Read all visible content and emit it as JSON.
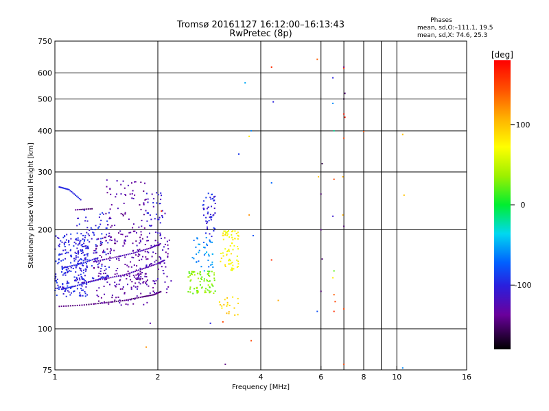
{
  "chart_data": {
    "type": "scatter",
    "title": "Tromsø 20161127 16:12:00–16:13:43",
    "subtitle": "RwPretec (8p)",
    "xlabel": "Frequency [MHz]",
    "ylabel": "Stationary phase Virtual Height [km]",
    "x_scale": "log",
    "y_scale": "log",
    "xlim": [
      1,
      16
    ],
    "ylim": [
      75,
      750
    ],
    "x_ticks": [
      1,
      2,
      4,
      6,
      8,
      10,
      16
    ],
    "y_ticks": [
      75,
      100,
      200,
      300,
      400,
      500,
      600,
      750
    ],
    "x_grid": [
      2,
      4,
      6,
      7,
      8,
      9,
      10
    ],
    "y_grid": [
      100,
      200,
      300,
      400,
      500,
      600
    ],
    "grid": true,
    "phase_stats": {
      "title": "Phases",
      "line_o": "mean, sd,O:–111.1, 19.5",
      "line_x": "mean, sd,X: 74.6, 25.3"
    },
    "colorbar": {
      "label": "[deg]",
      "range": [
        -180,
        180
      ],
      "ticks": [
        100,
        0,
        -100
      ],
      "colormap": "rainbow",
      "placement": "right"
    },
    "clusters": [
      {
        "x": [
          1.0,
          1.25
        ],
        "y": [
          125,
          195
        ],
        "phase": -100,
        "count": 220
      },
      {
        "x": [
          1.15,
          1.45
        ],
        "y": [
          140,
          230
        ],
        "phase": -100,
        "count": 100
      },
      {
        "x": [
          1.3,
          1.9
        ],
        "y": [
          118,
          195
        ],
        "phase": -130,
        "count": 200
      },
      {
        "x": [
          1.4,
          1.85
        ],
        "y": [
          195,
          285
        ],
        "phase": -130,
        "count": 70
      },
      {
        "x": [
          1.7,
          2.2
        ],
        "y": [
          128,
          190
        ],
        "phase": -125,
        "count": 80
      },
      {
        "x": [
          1.85,
          2.1
        ],
        "y": [
          190,
          260
        ],
        "phase": -110,
        "count": 40
      },
      {
        "x": [
          2.45,
          2.95
        ],
        "y": [
          128,
          150
        ],
        "phase": 30,
        "count": 80
      },
      {
        "x": [
          2.5,
          2.9
        ],
        "y": [
          150,
          190
        ],
        "phase": -60,
        "count": 40
      },
      {
        "x": [
          2.7,
          2.95
        ],
        "y": [
          190,
          260
        ],
        "phase": -100,
        "count": 50
      },
      {
        "x": [
          3.05,
          3.45
        ],
        "y": [
          150,
          200
        ],
        "phase": 75,
        "count": 70
      },
      {
        "x": [
          3.0,
          3.5
        ],
        "y": [
          110,
          125
        ],
        "phase": 90,
        "count": 20
      }
    ],
    "curves": [
      {
        "name": "",
        "x": [
          1.03,
          1.2,
          1.4,
          1.6,
          1.8,
          1.95,
          2.05
        ],
        "y": [
          117,
          118,
          120,
          122,
          125,
          127,
          130
        ],
        "phase": -145
      },
      {
        "name": "",
        "x": [
          1.03,
          1.1,
          1.2
        ],
        "y": [
          270,
          265,
          245
        ],
        "phase": -100
      },
      {
        "name": "",
        "x": [
          1.15,
          1.3
        ],
        "y": [
          230,
          232
        ],
        "phase": -145
      },
      {
        "name": "",
        "x": [
          1.05,
          1.15,
          1.3,
          1.45
        ],
        "y": [
          132,
          135,
          140,
          145
        ],
        "phase": -100
      },
      {
        "name": "",
        "x": [
          1.05,
          1.2,
          1.35
        ],
        "y": [
          153,
          158,
          165
        ],
        "phase": -100
      },
      {
        "name": "",
        "x": [
          1.2,
          1.4,
          1.6,
          1.8,
          2.0,
          2.1
        ],
        "y": [
          138,
          142,
          146,
          152,
          158,
          162
        ],
        "phase": -125
      },
      {
        "name": "",
        "x": [
          1.3,
          1.5,
          1.7,
          1.9,
          2.05
        ],
        "y": [
          160,
          165,
          170,
          176,
          182
        ],
        "phase": -125
      }
    ],
    "points": [
      {
        "x": 1.85,
        "y": 88,
        "phase": 120
      },
      {
        "x": 1.9,
        "y": 104,
        "phase": -130
      },
      {
        "x": 2.05,
        "y": 228,
        "phase": 170
      },
      {
        "x": 2.85,
        "y": 104,
        "phase": -100
      },
      {
        "x": 3.15,
        "y": 78,
        "phase": -145
      },
      {
        "x": 3.1,
        "y": 105,
        "phase": 150
      },
      {
        "x": 3.45,
        "y": 340,
        "phase": -90
      },
      {
        "x": 3.6,
        "y": 560,
        "phase": -50
      },
      {
        "x": 3.7,
        "y": 385,
        "phase": 80
      },
      {
        "x": 3.75,
        "y": 400,
        "phase": -60
      },
      {
        "x": 3.75,
        "y": 92,
        "phase": 150
      },
      {
        "x": 3.7,
        "y": 222,
        "phase": 120
      },
      {
        "x": 3.8,
        "y": 192,
        "phase": -80
      },
      {
        "x": 4.3,
        "y": 625,
        "phase": 160
      },
      {
        "x": 4.3,
        "y": 278,
        "phase": -70
      },
      {
        "x": 4.35,
        "y": 490,
        "phase": -100
      },
      {
        "x": 4.3,
        "y": 162,
        "phase": 160
      },
      {
        "x": 4.5,
        "y": 122,
        "phase": 110
      },
      {
        "x": 5.85,
        "y": 660,
        "phase": 140
      },
      {
        "x": 5.9,
        "y": 290,
        "phase": 100
      },
      {
        "x": 5.85,
        "y": 113,
        "phase": -80
      },
      {
        "x": 6.05,
        "y": 318,
        "phase": -160
      },
      {
        "x": 6.0,
        "y": 257,
        "phase": -150
      },
      {
        "x": 6.0,
        "y": 200,
        "phase": -140
      },
      {
        "x": 6.05,
        "y": 163,
        "phase": -150
      },
      {
        "x": 6.0,
        "y": 130,
        "phase": -150
      },
      {
        "x": 6.5,
        "y": 580,
        "phase": -100
      },
      {
        "x": 6.5,
        "y": 485,
        "phase": -60
      },
      {
        "x": 6.55,
        "y": 400,
        "phase": -20
      },
      {
        "x": 6.55,
        "y": 285,
        "phase": 150
      },
      {
        "x": 6.5,
        "y": 220,
        "phase": -110
      },
      {
        "x": 6.55,
        "y": 150,
        "phase": 20
      },
      {
        "x": 6.55,
        "y": 127,
        "phase": 140
      },
      {
        "x": 6.6,
        "y": 121,
        "phase": 150
      },
      {
        "x": 6.55,
        "y": 113,
        "phase": 160
      },
      {
        "x": 6.5,
        "y": 143,
        "phase": 80
      },
      {
        "x": 7.0,
        "y": 625,
        "phase": -140
      },
      {
        "x": 7.0,
        "y": 620,
        "phase": 150
      },
      {
        "x": 7.05,
        "y": 520,
        "phase": -150
      },
      {
        "x": 7.0,
        "y": 500,
        "phase": -170
      },
      {
        "x": 7.0,
        "y": 450,
        "phase": 170
      },
      {
        "x": 7.05,
        "y": 440,
        "phase": 170
      },
      {
        "x": 7.0,
        "y": 380,
        "phase": 150
      },
      {
        "x": 6.95,
        "y": 290,
        "phase": 110
      },
      {
        "x": 6.95,
        "y": 222,
        "phase": 110
      },
      {
        "x": 7.0,
        "y": 205,
        "phase": -150
      },
      {
        "x": 7.0,
        "y": 115,
        "phase": 150
      },
      {
        "x": 7.0,
        "y": 78,
        "phase": 150
      },
      {
        "x": 8.0,
        "y": 398,
        "phase": 140
      },
      {
        "x": 10.4,
        "y": 390,
        "phase": 100
      },
      {
        "x": 10.5,
        "y": 255,
        "phase": 100
      },
      {
        "x": 10.4,
        "y": 76,
        "phase": -60
      }
    ]
  }
}
